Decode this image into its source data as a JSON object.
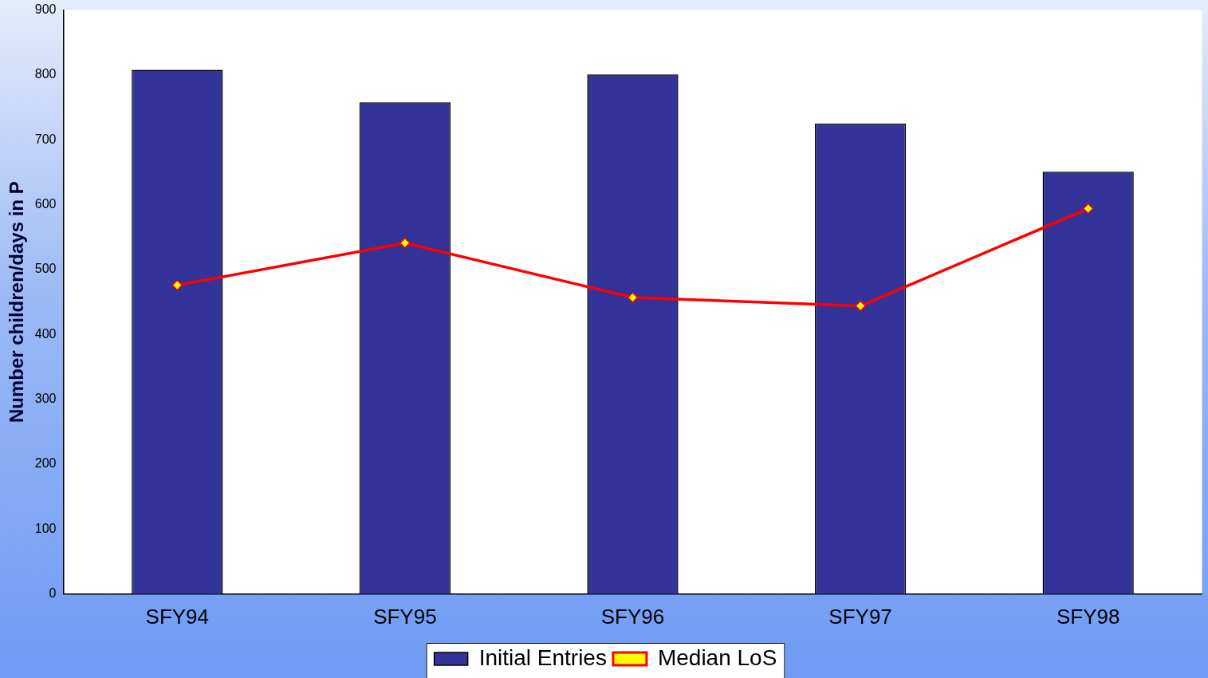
{
  "chart_data": {
    "type": "bar",
    "ylabel": "Number children/days in P",
    "categories": [
      "SFY94",
      "SFY95",
      "SFY96",
      "SFY97",
      "SFY98"
    ],
    "ylim": [
      0,
      900
    ],
    "yticks": [
      0,
      100,
      200,
      300,
      400,
      500,
      600,
      700,
      800,
      900
    ],
    "grid": false,
    "legend": "bottom",
    "series": [
      {
        "name": "Initial Entries",
        "color": "#333399",
        "values": [
          808,
          758,
          801,
          725,
          651
        ]
      },
      {
        "name": "Median LoS",
        "type": "line",
        "color": "#ff0000",
        "marker": "diamond",
        "values": [
          476,
          541,
          457,
          444,
          594
        ]
      }
    ]
  }
}
